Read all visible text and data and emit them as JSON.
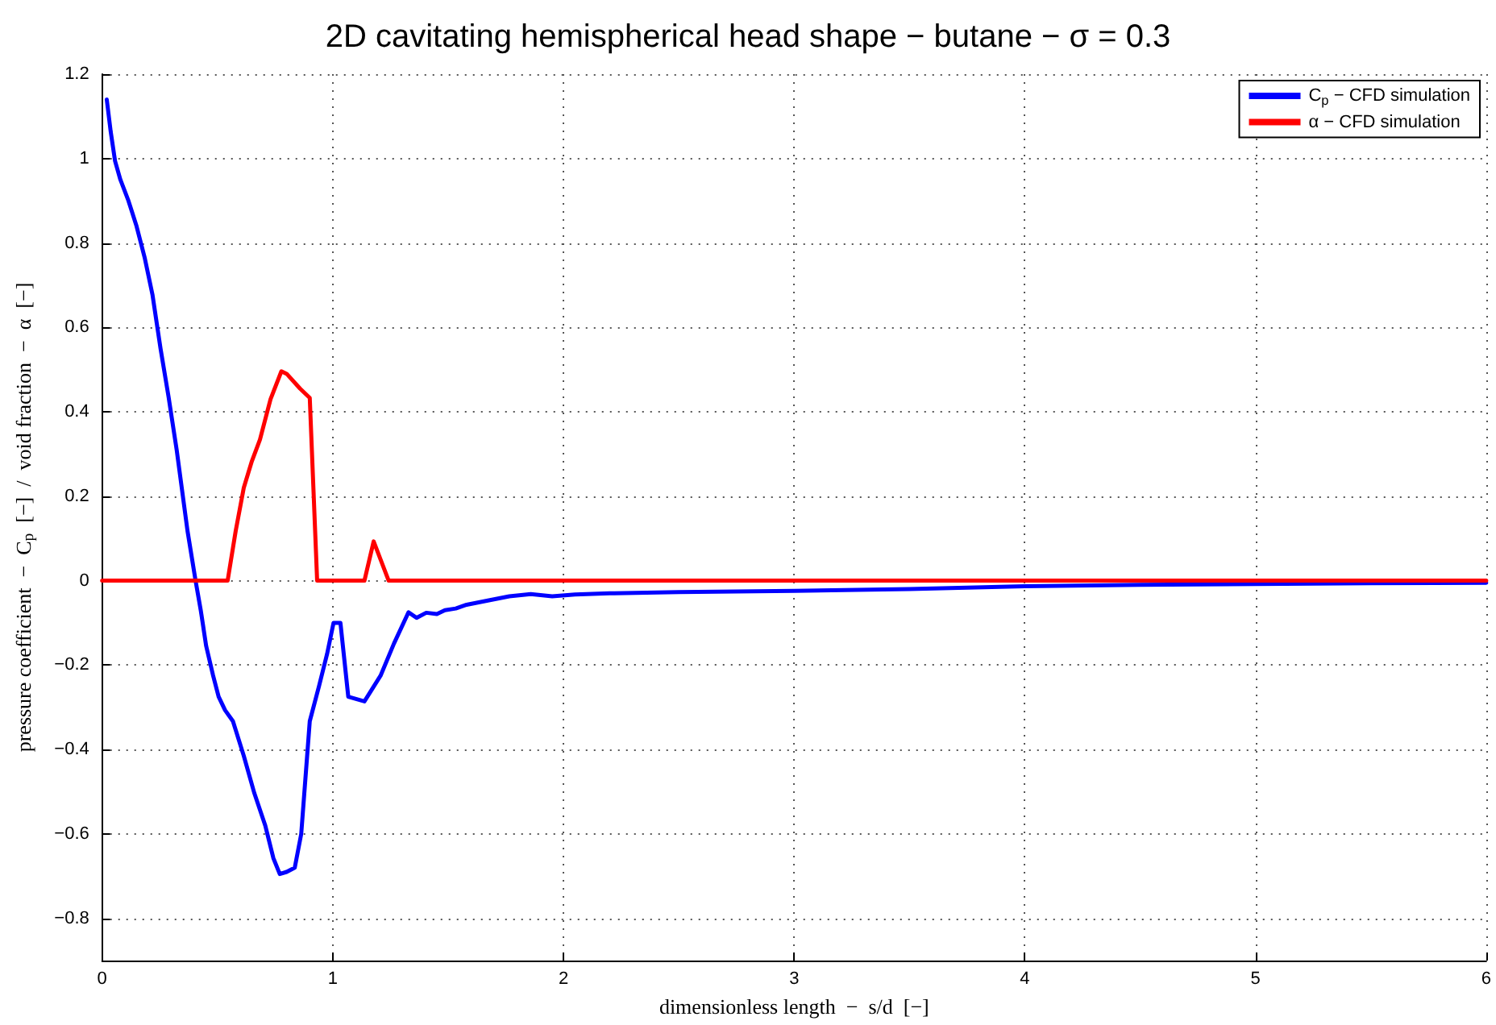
{
  "chart_data": {
    "type": "line",
    "title": "2D cavitating hemispherical head shape − butane − σ = 0.3",
    "xlabel": "dimensionless length  −  s/d  [−]",
    "ylabel": "pressure coefficient  −  C$_{p}$  [−]  /  void fraction  −  α  [−]",
    "xlim": [
      0,
      6
    ],
    "xticks": [
      0,
      1,
      2,
      3,
      4,
      5,
      6
    ],
    "ylim": [
      -0.9,
      1.2
    ],
    "yticks": [
      -0.8,
      -0.6,
      -0.4,
      -0.2,
      0,
      0.2,
      0.4,
      0.6,
      0.8,
      1,
      1.2
    ],
    "grid": true,
    "legend": "top right",
    "line_style": "solid",
    "marker": "none",
    "series": [
      {
        "name": "C$_{p}$ − CFD simulation",
        "color": "#0000ff",
        "x": [
          0.02,
          0.037,
          0.056,
          0.079,
          0.114,
          0.149,
          0.184,
          0.218,
          0.253,
          0.288,
          0.323,
          0.37,
          0.405,
          0.428,
          0.451,
          0.481,
          0.505,
          0.533,
          0.567,
          0.614,
          0.66,
          0.707,
          0.742,
          0.77,
          0.8,
          0.835,
          0.863,
          0.9,
          0.94,
          0.975,
          1.003,
          1.033,
          1.067,
          1.137,
          1.207,
          1.265,
          1.328,
          1.363,
          1.405,
          1.451,
          1.486,
          1.533,
          1.58,
          1.672,
          1.765,
          1.858,
          1.951,
          2.05,
          2.2,
          2.5,
          3,
          3.5,
          4,
          4.5,
          5,
          5.5,
          6
        ],
        "values": [
          1.14,
          1.064,
          0.994,
          0.95,
          0.9,
          0.84,
          0.766,
          0.678,
          0.55,
          0.435,
          0.31,
          0.118,
          0,
          -0.072,
          -0.155,
          -0.225,
          -0.275,
          -0.307,
          -0.333,
          -0.415,
          -0.504,
          -0.58,
          -0.657,
          -0.695,
          -0.69,
          -0.68,
          -0.6,
          -0.333,
          -0.25,
          -0.174,
          -0.1,
          -0.1,
          -0.275,
          -0.286,
          -0.225,
          -0.149,
          -0.075,
          -0.088,
          -0.076,
          -0.079,
          -0.07,
          -0.066,
          -0.057,
          -0.047,
          -0.037,
          -0.032,
          -0.037,
          -0.033,
          -0.03,
          -0.027,
          -0.024,
          -0.02,
          -0.013,
          -0.01,
          -0.008,
          -0.006,
          -0.005
        ]
      },
      {
        "name": "α − CFD simulation",
        "color": "#ff0000",
        "x": [
          0,
          0.544,
          0.579,
          0.614,
          0.649,
          0.684,
          0.73,
          0.777,
          0.8,
          0.858,
          0.9,
          0.932,
          1.137,
          1.177,
          1.207,
          1.242,
          6
        ],
        "values": [
          0,
          0,
          0.118,
          0.22,
          0.283,
          0.334,
          0.43,
          0.496,
          0.49,
          0.455,
          0.433,
          0,
          0,
          0.093,
          0.05,
          0,
          0
        ]
      }
    ]
  }
}
